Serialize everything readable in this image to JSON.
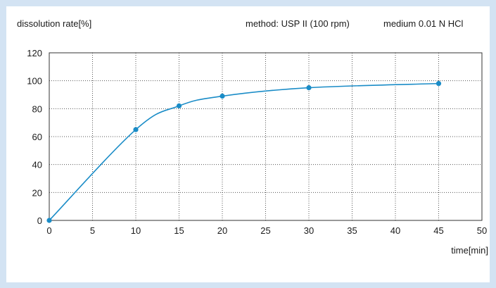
{
  "chart_data": {
    "type": "line",
    "ylabel": "dissolution rate[%]",
    "xlabel": "time[min]",
    "annotations": [
      "method: USP II (100 rpm)",
      "medium 0.01 N HCl"
    ],
    "x": [
      0,
      10,
      15,
      20,
      30,
      45
    ],
    "series": [
      {
        "values": [
          0,
          65,
          82,
          89,
          95,
          98
        ]
      }
    ],
    "xlim": [
      0,
      50
    ],
    "ylim": [
      0,
      120
    ],
    "xticks": [
      "0",
      "5",
      "10",
      "15",
      "20",
      "25",
      "30",
      "35",
      "40",
      "45",
      "50"
    ],
    "yticks": [
      "0",
      "20",
      "40",
      "60",
      "80",
      "100",
      "120"
    ],
    "grid": true,
    "grid_style": "dotted",
    "line_color": "#1a8cc7",
    "marker_color": "#1a8cc7",
    "page_background": "#d3e3f3"
  }
}
